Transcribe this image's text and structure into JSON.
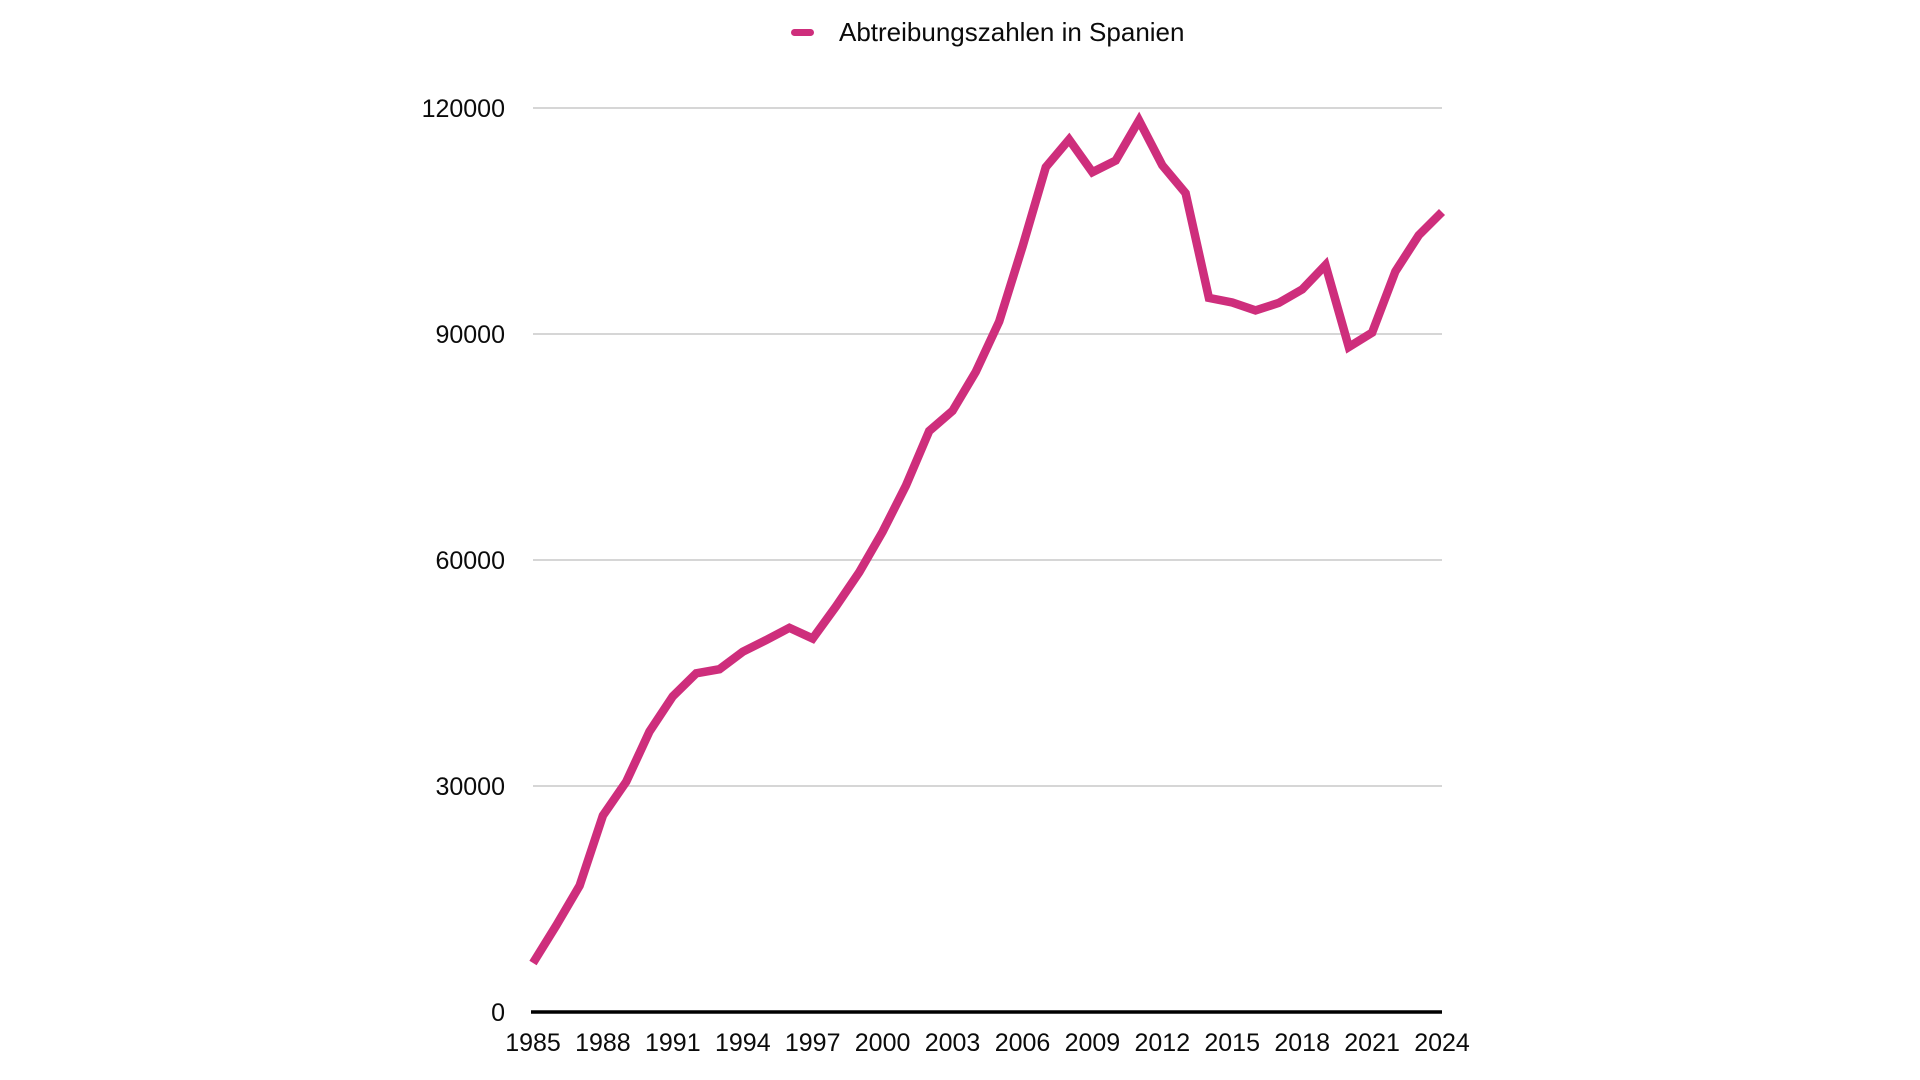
{
  "chart": {
    "legend_label": "Abtreibungszahlen in Spanien",
    "colors": {
      "line": "#CE2E7C",
      "grid": "#C9C9C9",
      "axis": "#000000",
      "text": "#0B0B0B",
      "background": "#FFFFFF"
    }
  },
  "chart_data": {
    "type": "line",
    "title": "",
    "legend_entries": [
      "Abtreibungszahlen in Spanien"
    ],
    "legend_position": "top-center",
    "xlabel": "",
    "ylabel": "",
    "xlim": [
      1985,
      2024
    ],
    "ylim": [
      0,
      120000
    ],
    "y_ticks": [
      0,
      30000,
      60000,
      90000,
      120000
    ],
    "x_ticks": [
      1985,
      1988,
      1991,
      1994,
      1997,
      2000,
      2003,
      2006,
      2009,
      2012,
      2015,
      2018,
      2021,
      2024
    ],
    "grid": "horizontal-only",
    "x": [
      1985,
      1986,
      1987,
      1988,
      1989,
      1990,
      1991,
      1992,
      1993,
      1994,
      1995,
      1996,
      1997,
      1998,
      1999,
      2000,
      2001,
      2002,
      2003,
      2004,
      2005,
      2006,
      2007,
      2008,
      2009,
      2010,
      2011,
      2012,
      2013,
      2014,
      2015,
      2016,
      2017,
      2018,
      2019,
      2020,
      2021,
      2022,
      2023,
      2024
    ],
    "series": [
      {
        "name": "Abtreibungszahlen in Spanien",
        "color": "#CE2E7C",
        "values": [
          6500,
          11500,
          16766,
          26069,
          30552,
          37231,
          41910,
          44962,
          45503,
          47832,
          49367,
          51002,
          49578,
          53847,
          58399,
          63756,
          69857,
          77125,
          79788,
          84985,
          91664,
          101592,
          112138,
          115812,
          111482,
          113031,
          118359,
          112390,
          108690,
          94796,
          94188,
          93131,
          94123,
          95917,
          99149,
          88269,
          90189,
          98316,
          103097,
          106200
        ]
      }
    ]
  }
}
